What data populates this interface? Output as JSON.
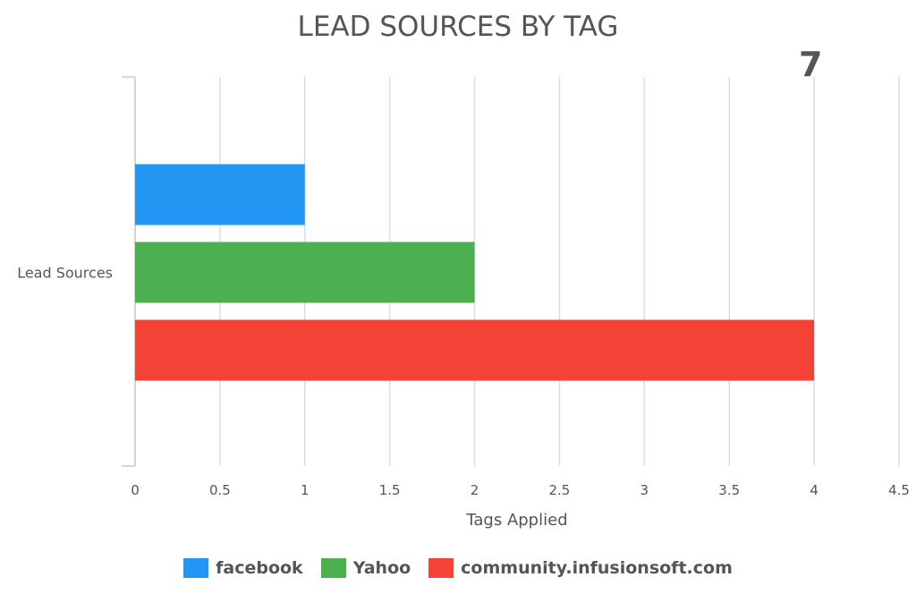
{
  "chart_data": {
    "type": "bar",
    "orientation": "horizontal",
    "title": "LEAD SOURCES BY TAG",
    "total": "7",
    "categories": [
      "Lead Sources"
    ],
    "series": [
      {
        "name": "facebook",
        "values": [
          1
        ],
        "color": "#2196F3"
      },
      {
        "name": "Yahoo",
        "values": [
          2
        ],
        "color": "#4CAF50"
      },
      {
        "name": "community.infusionsoft.com",
        "values": [
          4
        ],
        "color": "#F44336"
      }
    ],
    "xlabel": "Tags Applied",
    "ylabel": "",
    "xlim": [
      0,
      4.5
    ],
    "xticks": [
      "0",
      "0.5",
      "1",
      "1.5",
      "2",
      "2.5",
      "3",
      "3.5",
      "4",
      "4.5"
    ],
    "grid": true,
    "legend_position": "bottom"
  }
}
